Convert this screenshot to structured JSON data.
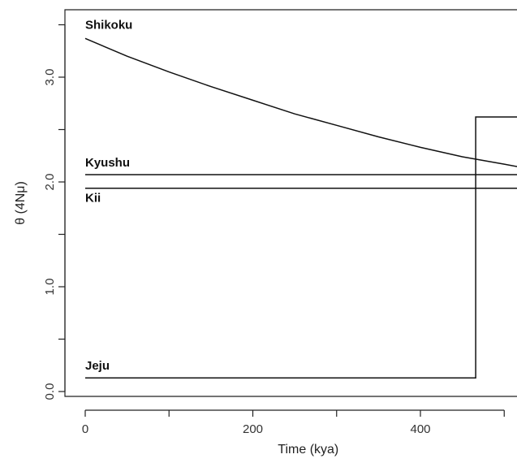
{
  "chart_data": {
    "type": "line",
    "xlabel": "Time (kya)",
    "ylabel": "θ (4Nμ)",
    "xlim": [
      0,
      540
    ],
    "ylim": [
      0.0,
      3.5
    ],
    "x_ticks": [
      0,
      100,
      200,
      300,
      400,
      500
    ],
    "x_tick_labels": [
      "0",
      "",
      "200",
      "",
      "400",
      ""
    ],
    "y_ticks": [
      0.0,
      0.5,
      1.0,
      1.5,
      2.0,
      2.5,
      3.0,
      3.5
    ],
    "y_tick_labels": [
      "0.0",
      "",
      "1.0",
      "",
      "2.0",
      "",
      "3.0",
      ""
    ],
    "grid": false,
    "series": [
      {
        "name": "Shikoku",
        "x": [
          0,
          50,
          100,
          150,
          200,
          250,
          300,
          350,
          400,
          450,
          500,
          540
        ],
        "y": [
          3.37,
          3.2,
          3.05,
          2.91,
          2.78,
          2.65,
          2.54,
          2.43,
          2.33,
          2.24,
          2.17,
          2.11
        ]
      },
      {
        "name": "Kyushu",
        "x": [
          0,
          540
        ],
        "y": [
          2.07,
          2.07
        ]
      },
      {
        "name": "Kii",
        "x": [
          0,
          540
        ],
        "y": [
          1.94,
          1.94
        ]
      },
      {
        "name": "Jeju",
        "x": [
          0,
          466,
          466,
          540
        ],
        "y": [
          0.13,
          0.13,
          2.62,
          2.62
        ]
      }
    ]
  }
}
